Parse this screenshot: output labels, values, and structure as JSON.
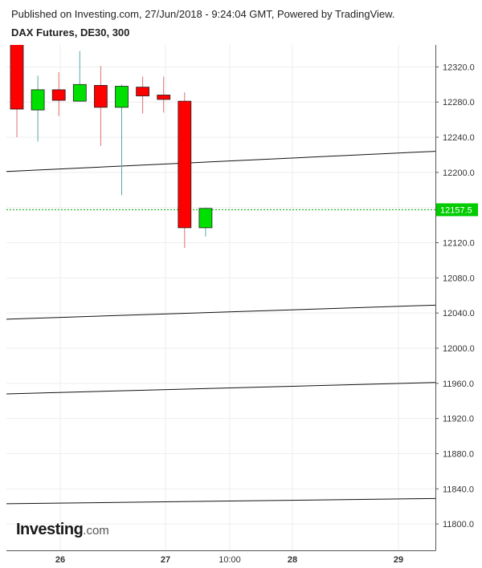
{
  "header": {
    "published": "Published on Investing.com, 27/Jun/2018 - 9:24:04 GMT, Powered by TradingView.",
    "title": "DAX Futures, DE30, 300"
  },
  "logo": {
    "name": "Investing",
    "domain": ".com"
  },
  "colors": {
    "up": "#00e000",
    "down": "#ff0000",
    "wick_up": "#5aa6a6",
    "wick_down": "#e07070",
    "grid": "#eeeeee",
    "price_line": "#00aa00",
    "price_label_bg": "#00cc00"
  },
  "chart_data": {
    "type": "candlestick",
    "ylim": [
      11770,
      12345
    ],
    "y_ticks": [
      12320,
      12280,
      12240,
      12200,
      12160,
      12120,
      12080,
      12040,
      12000,
      11960,
      11920,
      11880,
      11840,
      11800
    ],
    "y_tick_labels": [
      "12320.0",
      "12280.0",
      "12240.0",
      "12200.0",
      "12120.0",
      "12080.0",
      "12040.0",
      "12000.0",
      "11960.0",
      "11920.0",
      "11880.0",
      "11840.0",
      "11800.0"
    ],
    "x_labels": [
      "26",
      "27",
      "10:00",
      "28",
      "29"
    ],
    "current_price": 12157.5,
    "current_price_label": "12157.5",
    "candles": [
      {
        "open": 12358,
        "high": 12358,
        "low": 12240,
        "close": 12272
      },
      {
        "open": 12271,
        "high": 12310,
        "low": 12235,
        "close": 12294
      },
      {
        "open": 12294,
        "high": 12314,
        "low": 12264,
        "close": 12282
      },
      {
        "open": 12281,
        "high": 12338,
        "low": 12281,
        "close": 12300
      },
      {
        "open": 12299,
        "high": 12321,
        "low": 12230,
        "close": 12274
      },
      {
        "open": 12274,
        "high": 12300,
        "low": 12174,
        "close": 12298
      },
      {
        "open": 12297,
        "high": 12309,
        "low": 12267,
        "close": 12287
      },
      {
        "open": 12288,
        "high": 12309,
        "low": 12268,
        "close": 12283
      },
      {
        "open": 12281,
        "high": 12291,
        "low": 12114,
        "close": 12137
      },
      {
        "open": 12137,
        "high": 12160,
        "low": 12127,
        "close": 12159
      }
    ],
    "trendlines": [
      {
        "start": 12201,
        "end": 12224
      },
      {
        "start": 12033,
        "end": 12049
      },
      {
        "start": 11948,
        "end": 11961
      },
      {
        "start": 11823,
        "end": 11829
      }
    ]
  }
}
